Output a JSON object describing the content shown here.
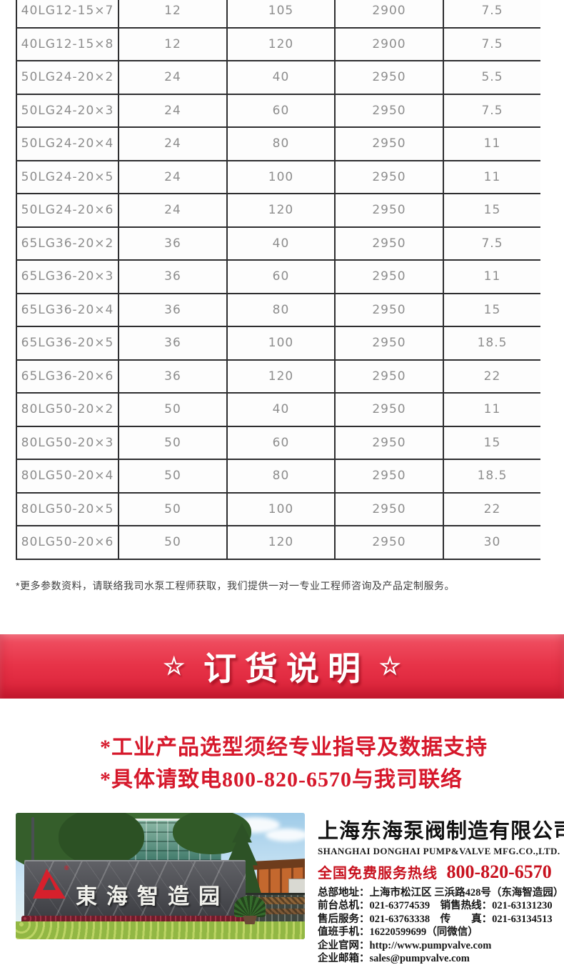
{
  "spec_table": {
    "rows": [
      [
        "40LG12-15×7",
        "12",
        "105",
        "2900",
        "7.5"
      ],
      [
        "40LG12-15×8",
        "12",
        "120",
        "2900",
        "7.5"
      ],
      [
        "50LG24-20×2",
        "24",
        "40",
        "2950",
        "5.5"
      ],
      [
        "50LG24-20×3",
        "24",
        "60",
        "2950",
        "7.5"
      ],
      [
        "50LG24-20×4",
        "24",
        "80",
        "2950",
        "11"
      ],
      [
        "50LG24-20×5",
        "24",
        "100",
        "2950",
        "11"
      ],
      [
        "50LG24-20×6",
        "24",
        "120",
        "2950",
        "15"
      ],
      [
        "65LG36-20×2",
        "36",
        "40",
        "2950",
        "7.5"
      ],
      [
        "65LG36-20×3",
        "36",
        "60",
        "2950",
        "11"
      ],
      [
        "65LG36-20×4",
        "36",
        "80",
        "2950",
        "15"
      ],
      [
        "65LG36-20×5",
        "36",
        "100",
        "2950",
        "18.5"
      ],
      [
        "65LG36-20×6",
        "36",
        "120",
        "2950",
        "22"
      ],
      [
        "80LG50-20×2",
        "50",
        "40",
        "2950",
        "11"
      ],
      [
        "80LG50-20×3",
        "50",
        "60",
        "2950",
        "15"
      ],
      [
        "80LG50-20×4",
        "50",
        "80",
        "2950",
        "18.5"
      ],
      [
        "80LG50-20×5",
        "50",
        "100",
        "2950",
        "22"
      ],
      [
        "80LG50-20×6",
        "50",
        "120",
        "2950",
        "30"
      ]
    ]
  },
  "footnote": "*更多参数资料，请联络我司水泵工程师获取，我们提供一对一专业工程师咨询及产品定制服务。",
  "order_banner": {
    "star": "☆",
    "title": "订货说明",
    "banner_color": "#e73348"
  },
  "order_tips": [
    "*工业产品选型须经专业指导及数据支持",
    "*具体请致电800-820-6570与我司联络"
  ],
  "tips_color": "#d6182b",
  "footer": {
    "photo": {
      "sign_text": "東海智造园"
    },
    "company_cn": "上海东海泵阀制造有限公司",
    "company_en": "SHANGHAI DONGHAI PUMP&VALVE MFG.CO.,LTD.",
    "hotline_label": "全国免费服务热线",
    "hotline_number": "800-820-6570",
    "hotline_color": "#c8121f",
    "contacts": [
      "总部地址：上海市松江区 三浜路428号（东海智造园）",
      "前台总机：021-63774539　销售热线：021-63131230",
      "售后服务：021-63763338　传　　真：021-63134513",
      "值班手机：16220599699（同微信）",
      "企业官网：http://www.pumpvalve.com",
      "企业邮箱：sales@pumpvalve.com"
    ]
  }
}
